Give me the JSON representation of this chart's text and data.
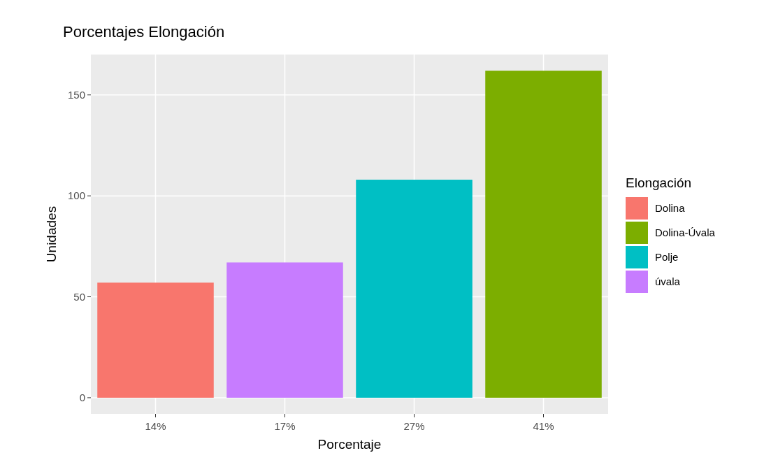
{
  "chart_data": {
    "type": "bar",
    "title": "Porcentajes Elongación",
    "xlabel": "Porcentaje",
    "ylabel": "Unidades",
    "legend_title": "Elongación",
    "categories": [
      "14%",
      "17%",
      "27%",
      "41%"
    ],
    "stacked": true,
    "series": [
      {
        "name": "Dolina",
        "color": "#f8766d",
        "values": [
          57,
          null,
          null,
          null
        ]
      },
      {
        "name": "Dolina-Úvala",
        "color": "#7cae00",
        "values": [
          null,
          null,
          null,
          162
        ]
      },
      {
        "name": "Polje",
        "color": "#00bfc4",
        "values": [
          null,
          null,
          108,
          null
        ]
      },
      {
        "name": "úvala",
        "color": "#c77cff",
        "values": [
          null,
          67,
          null,
          null
        ]
      }
    ],
    "ylim": [
      -8,
      170
    ],
    "yticks": [
      0,
      50,
      100,
      150
    ],
    "grid": true,
    "legend": "right"
  }
}
